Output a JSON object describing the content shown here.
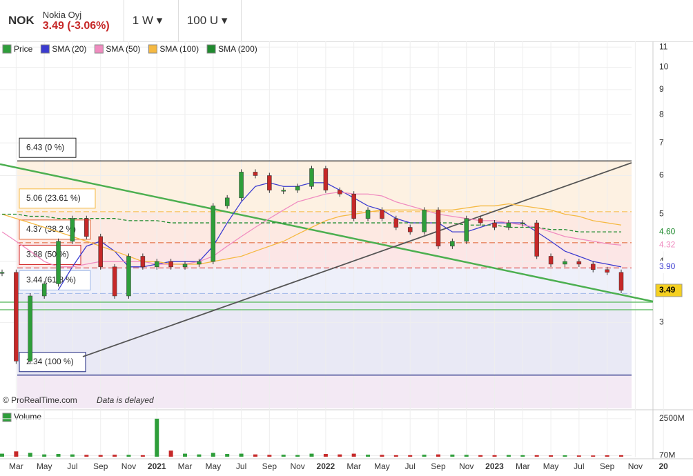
{
  "header": {
    "symbol": "NOK",
    "name": "Nokia Oyj",
    "quote": "3.49 (-3.06%)",
    "interval": "1 W",
    "units": "100 U"
  },
  "chart_data": {
    "type": "candlestick",
    "log_scale": true,
    "ylim": [
      2.0,
      11.3
    ],
    "yticks": [
      3,
      4,
      5,
      6,
      7,
      8,
      9,
      10,
      11
    ],
    "x_labels": [
      "Mar",
      "May",
      "Jul",
      "Sep",
      "Nov",
      "2021",
      "Mar",
      "May",
      "Jul",
      "Sep",
      "Nov",
      "2022",
      "Mar",
      "May",
      "Jul",
      "Sep",
      "Nov",
      "2023",
      "Mar",
      "May",
      "Jul",
      "Sep",
      "Nov",
      "20"
    ],
    "series": [
      {
        "name": "Price",
        "color": "#2e9e3a",
        "values": [
          3.8,
          2.5,
          3.4,
          3.6,
          4.4,
          4.9,
          4.5,
          3.9,
          3.4,
          4.1,
          3.9,
          4.0,
          3.9,
          3.95,
          4.0,
          5.2,
          5.4,
          6.1,
          6.0,
          5.6,
          5.6,
          5.7,
          6.2,
          5.6,
          5.5,
          4.9,
          5.1,
          4.9,
          4.7,
          4.6,
          5.1,
          4.3,
          4.4,
          4.9,
          4.8,
          4.7,
          4.8,
          4.8,
          4.1,
          3.95,
          4.0,
          3.95,
          3.85,
          3.8,
          3.49
        ]
      },
      {
        "name": "SMA (20)",
        "color": "#3b3bd0",
        "values": [
          null,
          null,
          null,
          null,
          3.5,
          3.9,
          4.3,
          4.4,
          4.2,
          3.9,
          3.9,
          3.95,
          4.0,
          4.0,
          4.0,
          4.3,
          4.8,
          5.3,
          5.7,
          5.8,
          5.7,
          5.7,
          5.8,
          5.8,
          5.6,
          5.4,
          5.2,
          5.1,
          4.9,
          4.8,
          4.8,
          4.8,
          4.6,
          4.6,
          4.7,
          4.8,
          4.8,
          4.8,
          4.6,
          4.4,
          4.2,
          4.1,
          4.0,
          3.95,
          3.9
        ]
      },
      {
        "name": "SMA (50)",
        "color": "#f08cc0",
        "values": [
          4.6,
          4.4,
          4.2,
          4.0,
          3.9,
          3.9,
          3.95,
          4.0,
          4.0,
          4.0,
          4.0,
          3.95,
          3.95,
          3.95,
          4.0,
          4.1,
          4.3,
          4.5,
          4.7,
          4.9,
          5.1,
          5.3,
          5.4,
          5.5,
          5.55,
          5.5,
          5.5,
          5.45,
          5.3,
          5.2,
          5.1,
          5.0,
          4.95,
          4.9,
          4.85,
          4.85,
          4.8,
          4.75,
          4.7,
          4.6,
          4.5,
          4.45,
          4.4,
          4.35,
          4.32
        ]
      },
      {
        "name": "SMA (100)",
        "color": "#f5b942",
        "values": [
          5.0,
          4.9,
          4.8,
          4.7,
          4.6,
          4.5,
          4.4,
          4.3,
          4.2,
          4.1,
          4.0,
          4.0,
          3.95,
          3.95,
          3.95,
          4.0,
          4.05,
          4.1,
          4.2,
          4.3,
          4.4,
          4.55,
          4.7,
          4.85,
          4.95,
          5.0,
          5.05,
          5.1,
          5.1,
          5.1,
          5.1,
          5.1,
          5.1,
          5.15,
          5.2,
          5.2,
          5.25,
          5.2,
          5.15,
          5.1,
          5.0,
          4.95,
          4.85,
          4.8,
          4.75
        ]
      },
      {
        "name": "SMA (200)",
        "color": "#1f8a2e",
        "values": [
          5.0,
          5.0,
          4.95,
          4.95,
          4.9,
          4.9,
          4.9,
          4.9,
          4.9,
          4.85,
          4.85,
          4.85,
          4.8,
          4.8,
          4.8,
          4.8,
          4.8,
          4.8,
          4.8,
          4.8,
          4.8,
          4.8,
          4.8,
          4.8,
          4.8,
          4.8,
          4.8,
          4.8,
          4.8,
          4.8,
          4.8,
          4.8,
          4.8,
          4.75,
          4.75,
          4.75,
          4.7,
          4.7,
          4.7,
          4.65,
          4.65,
          4.6,
          4.6,
          4.6,
          4.6
        ]
      }
    ],
    "fib_levels": [
      {
        "value": 6.43,
        "label": "6.43 (0 %)",
        "color": "#222222"
      },
      {
        "value": 5.06,
        "label": "5.06 (23.61 %)",
        "color": "#f5b942"
      },
      {
        "value": 4.37,
        "label": "4.37 (38.2 %)",
        "color": "#e06030"
      },
      {
        "value": 3.88,
        "label": "3.88 (50 %)",
        "color": "#d02020"
      },
      {
        "value": 3.44,
        "label": "3.44 (61.8 %)",
        "color": "#a0b8e8"
      },
      {
        "value": 2.34,
        "label": "2.34 (100 %)",
        "color": "#1a237e"
      }
    ],
    "price_tags": [
      {
        "value": 4.6,
        "label": "4.60",
        "color": "#1f8a2e"
      },
      {
        "value": 4.32,
        "label": "4.32",
        "color": "#f08cc0"
      },
      {
        "value": 3.9,
        "label": "3.90",
        "color": "#3b3bd0"
      },
      {
        "value": 3.49,
        "label": "3.49",
        "color": "#f5d020"
      }
    ],
    "watermark": "© ProRealTime.com",
    "delay_note": "Data is delayed",
    "volume": {
      "name": "Volume",
      "ylim": [
        0,
        2950
      ],
      "yticks": [
        {
          "value": 2500,
          "label": "2500M"
        },
        {
          "value": 70,
          "label": "70M"
        }
      ],
      "values": [
        200,
        350,
        250,
        150,
        180,
        150,
        120,
        110,
        130,
        120,
        100,
        2500,
        400,
        200,
        150,
        250,
        180,
        200,
        150,
        120,
        130,
        110,
        200,
        180,
        150,
        200,
        130,
        120,
        100,
        100,
        130,
        150,
        140,
        120,
        100,
        100,
        110,
        100,
        100,
        90,
        90,
        80,
        80,
        90,
        100
      ]
    }
  }
}
